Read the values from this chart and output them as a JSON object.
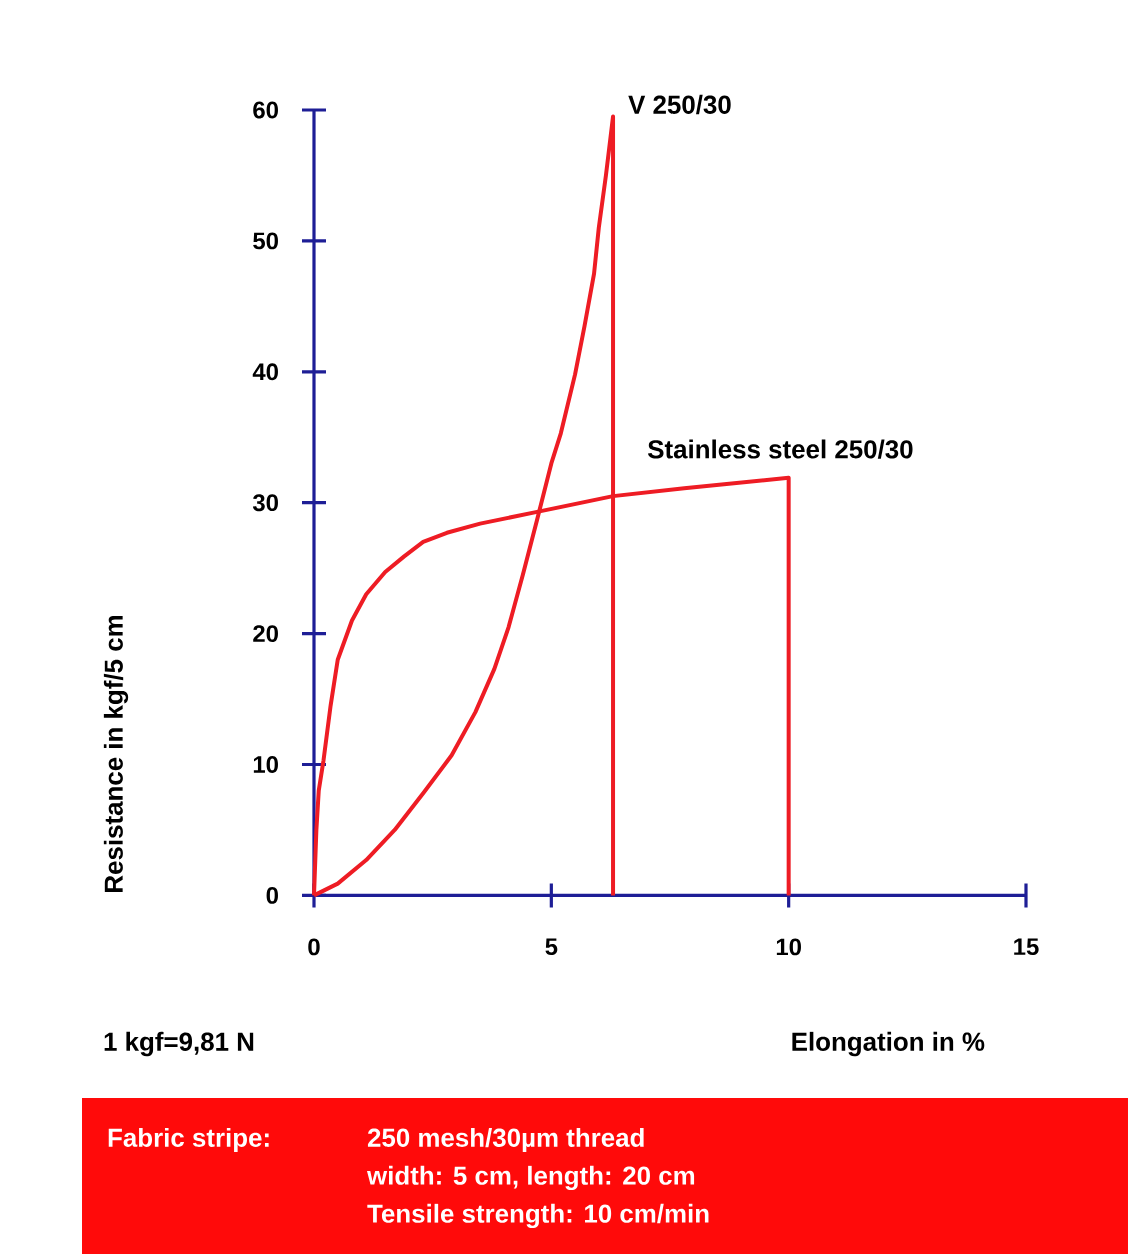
{
  "chart_data": {
    "type": "line",
    "xlabel": "Elongation in %",
    "ylabel": "Resistance in kgf/5 cm",
    "series": [
      {
        "name": "V 250/30",
        "color": "#ee1c24",
        "x": [
          0,
          0.5,
          1.1,
          1.7,
          2.3,
          2.9,
          3.4,
          3.8,
          4.1,
          4.4,
          4.7,
          5.0,
          5.2,
          5.5,
          5.7,
          5.9,
          6.0,
          6.15,
          6.3,
          6.3
        ],
        "values": [
          0,
          0.9,
          2.7,
          5,
          7.8,
          10.7,
          14,
          17.3,
          20.5,
          24.5,
          28.7,
          33,
          35.3,
          39.8,
          43.5,
          47.5,
          51,
          55,
          59.5,
          0
        ]
      },
      {
        "name": "Stainless steel 250/30",
        "color": "#ee1c24",
        "x": [
          0,
          0.05,
          0.1,
          0.2,
          0.35,
          0.5,
          0.8,
          1.1,
          1.5,
          1.9,
          2.3,
          2.8,
          3.5,
          4.7,
          6.3,
          7.8,
          10,
          10
        ],
        "values": [
          0,
          5,
          8,
          10.3,
          14.5,
          18,
          21,
          23,
          24.7,
          25.9,
          27,
          27.7,
          28.4,
          29.3,
          30.5,
          31.1,
          31.9,
          0
        ]
      }
    ],
    "xlim": [
      0,
      15
    ],
    "ylim": [
      0,
      60
    ],
    "xticks": [
      0,
      5,
      10,
      15
    ],
    "yticks": [
      0,
      10,
      20,
      30,
      40,
      50,
      60
    ],
    "grid": false,
    "legend": false,
    "marker": "none",
    "line_style": "solid",
    "annotations": [
      "1 kgf=9,81 N",
      "Fabric stripe:",
      "250 mesh/30µm thread",
      "width: 5 cm, length: 20 cm",
      "Tensile strength: 10 cm/min"
    ]
  }
}
